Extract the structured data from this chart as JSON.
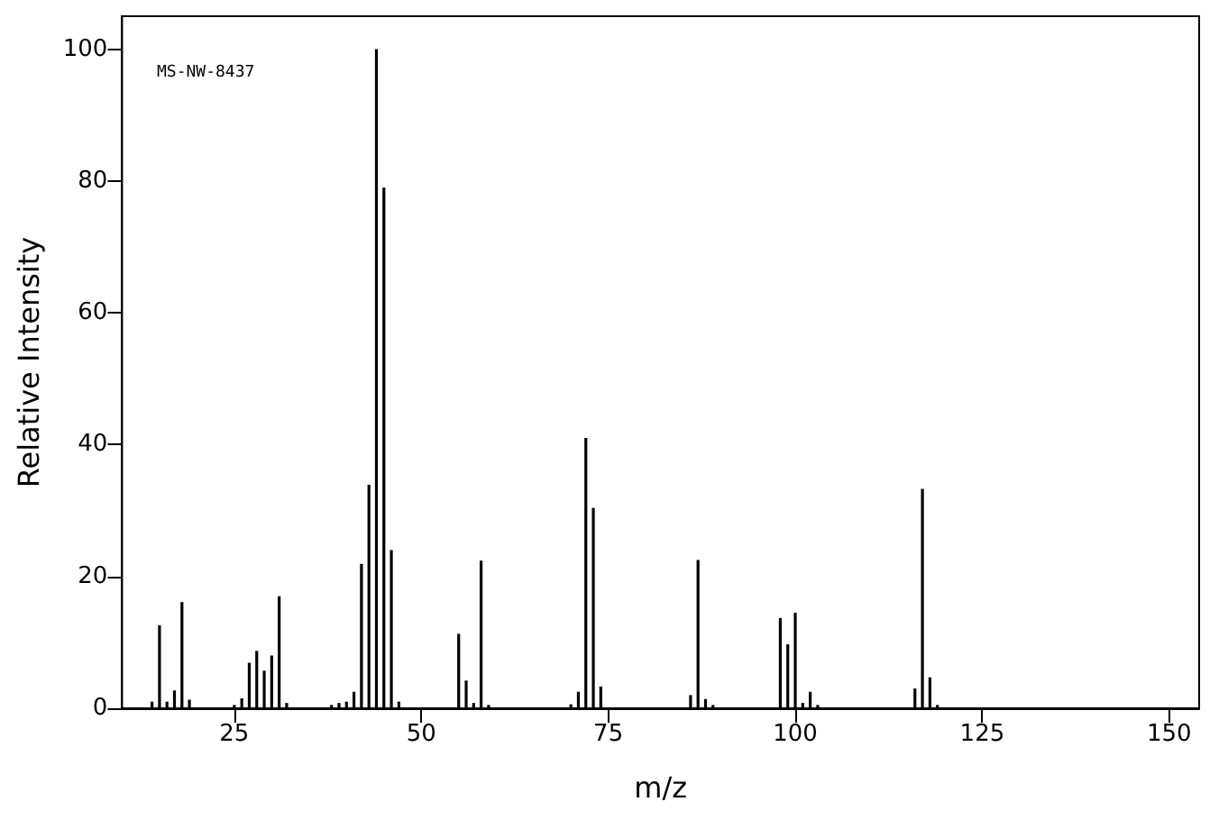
{
  "chart_data": {
    "type": "bar",
    "xlabel": "m/z",
    "ylabel": "Relative Intensity",
    "annotations": [
      "MS-NW-8437"
    ],
    "x": [
      14,
      15,
      16,
      17,
      18,
      19,
      25,
      26,
      27,
      28,
      29,
      30,
      31,
      32,
      38,
      39,
      40,
      41,
      42,
      43,
      44,
      45,
      46,
      47,
      55,
      56,
      57,
      58,
      59,
      70,
      71,
      72,
      73,
      74,
      86,
      87,
      88,
      89,
      98,
      99,
      100,
      101,
      102,
      103,
      116,
      117,
      118,
      119
    ],
    "series": [
      {
        "color": "#000000",
        "values": [
          1,
          12.6,
          1,
          2.7,
          16.1,
          1.3,
          0.5,
          1.5,
          6.9,
          8.7,
          5.7,
          8,
          17,
          0.8,
          0.5,
          0.8,
          1,
          2.5,
          21.9,
          33.9,
          100,
          79,
          24,
          1,
          11.3,
          4.2,
          0.8,
          22.4,
          0.5,
          0.6,
          2.5,
          41,
          30.4,
          3.3,
          2,
          22.5,
          1.4,
          0.5,
          13.7,
          9.7,
          14.5,
          0.8,
          2.5,
          0.5,
          3,
          33.3,
          4.7,
          0.5
        ]
      }
    ],
    "xlim": [
      10,
      154
    ],
    "xticks": [
      25,
      50,
      75,
      100,
      125,
      150
    ],
    "ylim": [
      0,
      105
    ],
    "yticks": [
      0,
      20,
      40,
      60,
      80,
      100
    ],
    "grid": false
  }
}
